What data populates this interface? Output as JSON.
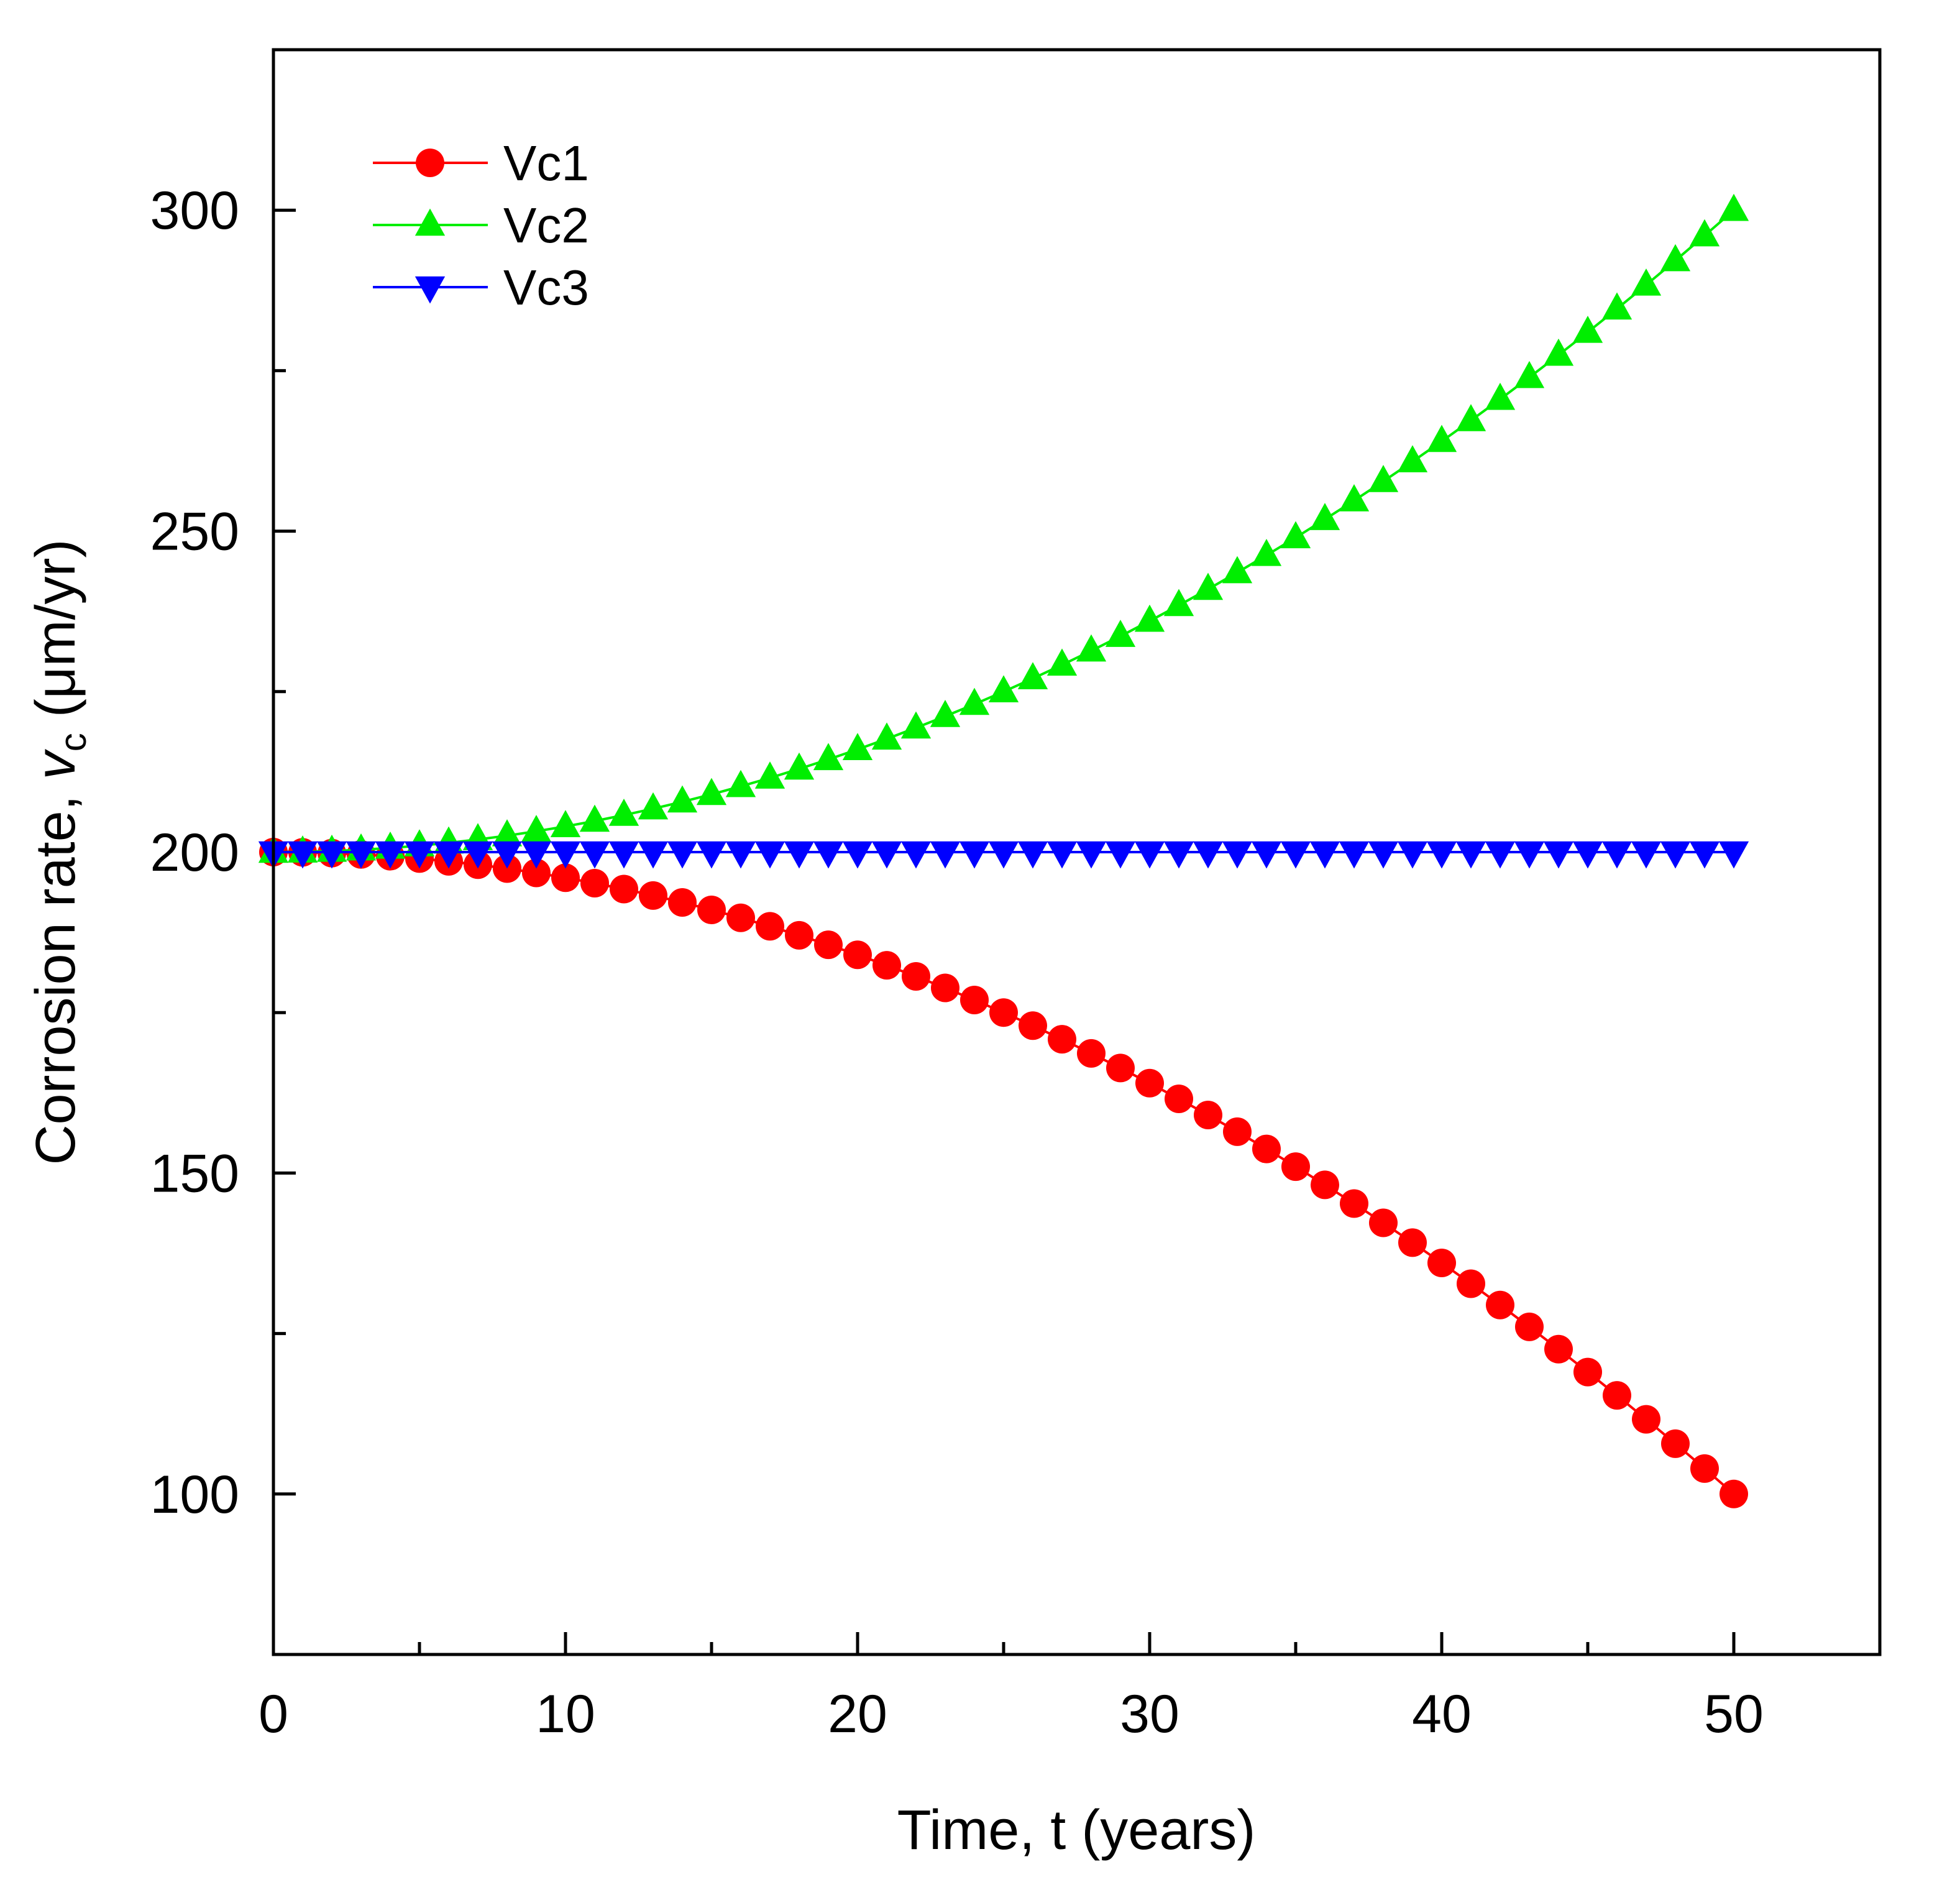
{
  "chart_data": {
    "type": "scatter",
    "title": "",
    "xlabel": "Time, t (years)",
    "ylabel_parts": {
      "prefix": "Corrosion rate, ",
      "var": "v",
      "sub": "c",
      "suffix": " (μm/yr)"
    },
    "xlim": [
      0,
      55
    ],
    "ylim": [
      75,
      325
    ],
    "xticks": [
      0,
      10,
      20,
      30,
      40,
      50
    ],
    "yticks": [
      100,
      150,
      200,
      250,
      300
    ],
    "x_minor_step": 5,
    "y_minor_step": 25,
    "grid": false,
    "legend_position": "top-left",
    "series": [
      {
        "name": "Vc1",
        "marker": "circle",
        "color": "#ff0000",
        "formula_note": "decreasing quadratic from 200 to 100",
        "x": [
          0,
          1,
          2,
          3,
          4,
          5,
          6,
          7,
          8,
          9,
          10,
          11,
          12,
          13,
          14,
          15,
          16,
          17,
          18,
          19,
          20,
          21,
          22,
          23,
          24,
          25,
          26,
          27,
          28,
          29,
          30,
          31,
          32,
          33,
          34,
          35,
          36,
          37,
          38,
          39,
          40,
          41,
          42,
          43,
          44,
          45,
          46,
          47,
          48,
          49,
          50
        ],
        "y": [
          200,
          199.96,
          199.84,
          199.64,
          199.36,
          199,
          198.56,
          198.04,
          197.44,
          196.76,
          196,
          195.16,
          194.24,
          193.24,
          192.16,
          191,
          189.76,
          188.44,
          187.04,
          185.56,
          184,
          182.36,
          180.64,
          178.84,
          176.96,
          175,
          172.96,
          170.84,
          168.64,
          166.36,
          164,
          161.56,
          159.04,
          156.44,
          153.76,
          151,
          148.16,
          145.24,
          142.24,
          139.16,
          136,
          132.76,
          129.44,
          126.04,
          122.56,
          119,
          115.36,
          111.64,
          107.84,
          103.96,
          100
        ]
      },
      {
        "name": "Vc2",
        "marker": "triangle-up",
        "color": "#00ee00",
        "formula_note": "increasing quadratic from 200 to 300",
        "x": [
          0,
          1,
          2,
          3,
          4,
          5,
          6,
          7,
          8,
          9,
          10,
          11,
          12,
          13,
          14,
          15,
          16,
          17,
          18,
          19,
          20,
          21,
          22,
          23,
          24,
          25,
          26,
          27,
          28,
          29,
          30,
          31,
          32,
          33,
          34,
          35,
          36,
          37,
          38,
          39,
          40,
          41,
          42,
          43,
          44,
          45,
          46,
          47,
          48,
          49,
          50
        ],
        "y": [
          200,
          200.04,
          200.16,
          200.36,
          200.64,
          201,
          201.44,
          201.96,
          202.56,
          203.24,
          204,
          204.84,
          205.76,
          206.76,
          207.84,
          209,
          210.24,
          211.56,
          212.96,
          214.44,
          216,
          217.64,
          219.36,
          221.16,
          223.04,
          225,
          227.04,
          229.16,
          231.36,
          233.64,
          236,
          238.44,
          240.96,
          243.56,
          246.24,
          249,
          251.84,
          254.76,
          257.76,
          260.84,
          264,
          267.24,
          270.56,
          273.96,
          277.44,
          281,
          284.64,
          288.36,
          292.16,
          296.04,
          300
        ]
      },
      {
        "name": "Vc3",
        "marker": "triangle-down",
        "color": "#0000ff",
        "formula_note": "constant 200",
        "x": [
          0,
          1,
          2,
          3,
          4,
          5,
          6,
          7,
          8,
          9,
          10,
          11,
          12,
          13,
          14,
          15,
          16,
          17,
          18,
          19,
          20,
          21,
          22,
          23,
          24,
          25,
          26,
          27,
          28,
          29,
          30,
          31,
          32,
          33,
          34,
          35,
          36,
          37,
          38,
          39,
          40,
          41,
          42,
          43,
          44,
          45,
          46,
          47,
          48,
          49,
          50
        ],
        "y": [
          200,
          200,
          200,
          200,
          200,
          200,
          200,
          200,
          200,
          200,
          200,
          200,
          200,
          200,
          200,
          200,
          200,
          200,
          200,
          200,
          200,
          200,
          200,
          200,
          200,
          200,
          200,
          200,
          200,
          200,
          200,
          200,
          200,
          200,
          200,
          200,
          200,
          200,
          200,
          200,
          200,
          200,
          200,
          200,
          200,
          200,
          200,
          200,
          200,
          200,
          200
        ]
      }
    ]
  }
}
